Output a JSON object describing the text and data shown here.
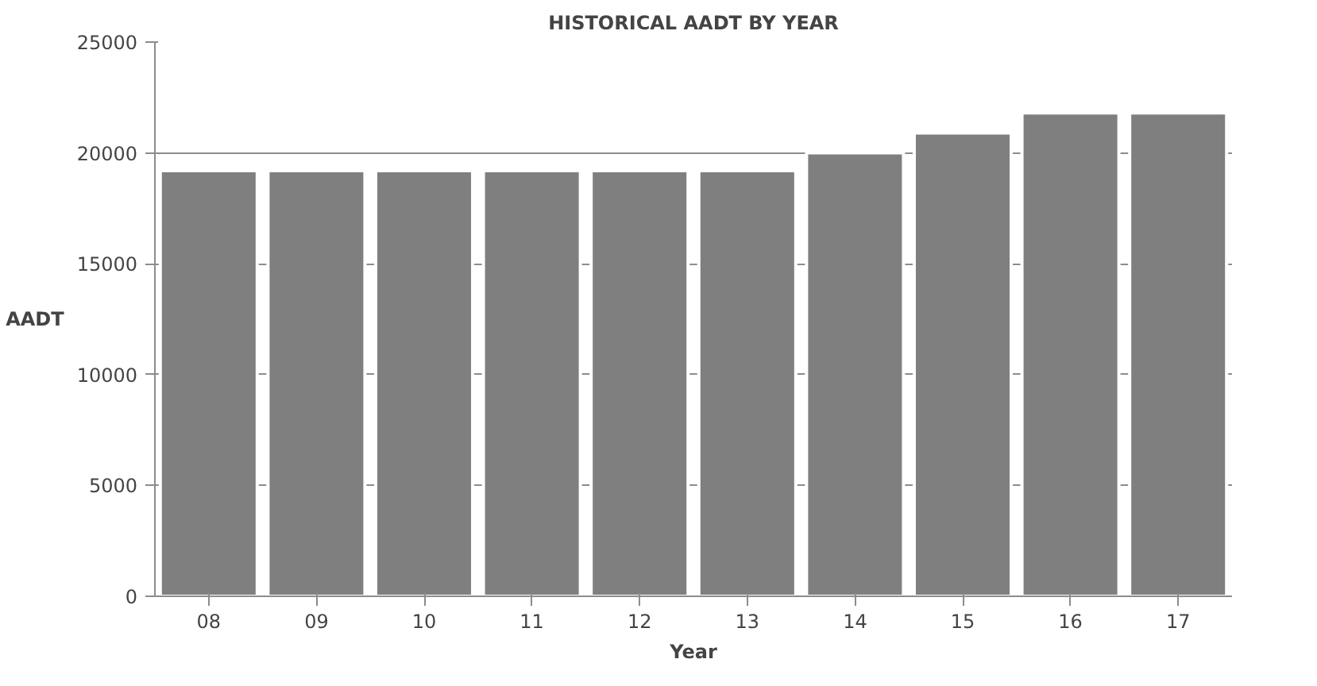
{
  "chart_data": {
    "type": "bar",
    "title": "HISTORICAL AADT BY YEAR",
    "xlabel": "Year",
    "ylabel": "AADT",
    "categories": [
      "08",
      "09",
      "10",
      "11",
      "12",
      "13",
      "14",
      "15",
      "16",
      "17"
    ],
    "values": [
      19200,
      19200,
      19200,
      19200,
      19200,
      19200,
      20000,
      20900,
      21800,
      21800
    ],
    "color": "#7f7f7f",
    "ylim": [
      0,
      25000
    ],
    "yticks": [
      0,
      5000,
      10000,
      15000,
      20000,
      25000
    ],
    "grid": "y"
  }
}
